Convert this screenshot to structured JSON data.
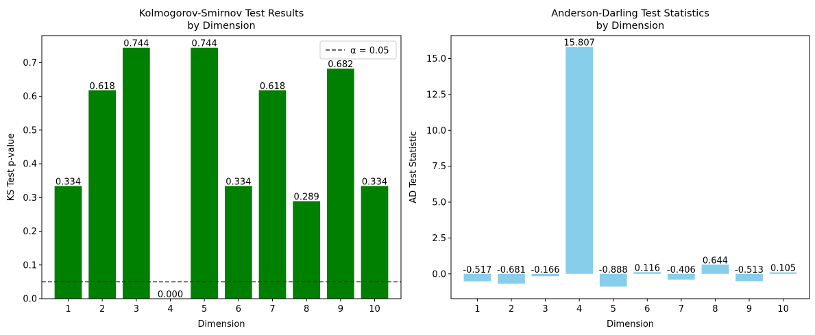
{
  "chart_data": [
    {
      "type": "bar",
      "title": "Kolmogorov-Smirnov Test Results\nby Dimension",
      "xlabel": "Dimension",
      "ylabel": "KS Test p-value",
      "categories": [
        "1",
        "2",
        "3",
        "4",
        "5",
        "6",
        "7",
        "8",
        "9",
        "10"
      ],
      "values": [
        0.334,
        0.618,
        0.744,
        0.0,
        0.744,
        0.334,
        0.618,
        0.289,
        0.682,
        0.334
      ],
      "value_labels": [
        "0.334",
        "0.618",
        "0.744",
        "0.000",
        "0.744",
        "0.334",
        "0.618",
        "0.289",
        "0.682",
        "0.334"
      ],
      "ylim": [
        0,
        0.78
      ],
      "yticks": [
        0.0,
        0.1,
        0.2,
        0.3,
        0.4,
        0.5,
        0.6,
        0.7
      ],
      "ytick_labels": [
        "0.0",
        "0.1",
        "0.2",
        "0.3",
        "0.4",
        "0.5",
        "0.6",
        "0.7"
      ],
      "bar_color": "#008000",
      "reference_line": {
        "value": 0.05,
        "label": "α = 0.05",
        "color": "#333333",
        "style": "dashed"
      },
      "legend": {
        "position": "top-right"
      },
      "grid": false
    },
    {
      "type": "bar",
      "title": "Anderson-Darling Test Statistics\nby Dimension",
      "xlabel": "Dimension",
      "ylabel": "AD Test Statistic",
      "categories": [
        "1",
        "2",
        "3",
        "4",
        "5",
        "6",
        "7",
        "8",
        "9",
        "10"
      ],
      "values": [
        -0.517,
        -0.681,
        -0.166,
        15.807,
        -0.888,
        0.116,
        -0.406,
        0.644,
        -0.513,
        0.105
      ],
      "value_labels": [
        "-0.517",
        "-0.681",
        "-0.166",
        "15.807",
        "-0.888",
        "0.116",
        "-0.406",
        "0.644",
        "-0.513",
        "0.105"
      ],
      "ylim": [
        -1.73,
        16.6
      ],
      "yticks": [
        0.0,
        2.5,
        5.0,
        7.5,
        10.0,
        12.5,
        15.0
      ],
      "ytick_labels": [
        "0.0",
        "2.5",
        "5.0",
        "7.5",
        "10.0",
        "12.5",
        "15.0"
      ],
      "bar_color": "#87ceeb",
      "grid": false
    }
  ]
}
